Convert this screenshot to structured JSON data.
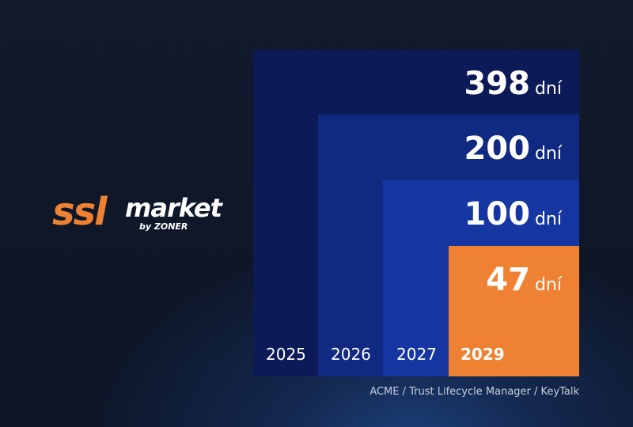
{
  "logo": {
    "brand": "ssl",
    "product": "market",
    "byline": "by ZONER"
  },
  "steps": [
    {
      "year": "2025",
      "days": 398,
      "unit": "dní"
    },
    {
      "year": "2026",
      "days": 200,
      "unit": "dní"
    },
    {
      "year": "2027",
      "days": 100,
      "unit": "dní"
    },
    {
      "year": "2029",
      "days": 47,
      "unit": "dní"
    }
  ],
  "footer": "ACME / Trust Lifecycle Manager / KeyTalk"
}
